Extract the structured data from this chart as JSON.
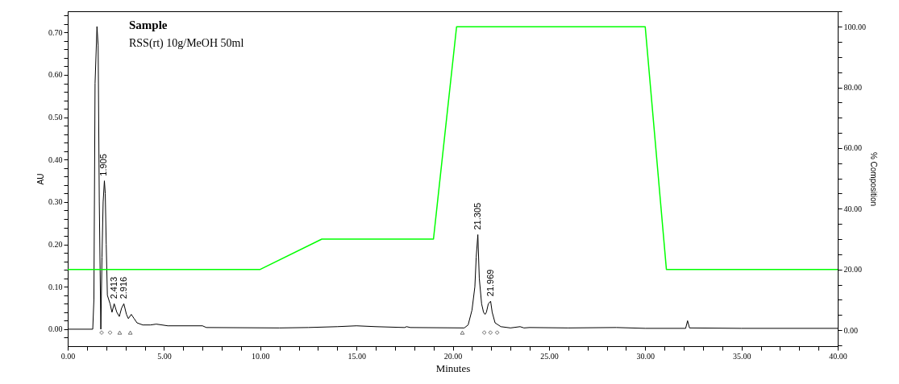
{
  "chart_data": {
    "type": "line",
    "title": "Sample",
    "subtitle": "RSS(rt) 10g/MeOH 50ml",
    "xlabel": "Minutes",
    "ylabel": "AU",
    "y2label": "% Composition",
    "xlim": [
      0,
      40
    ],
    "xticks": [
      {
        "value": 0,
        "label": "0.00"
      },
      {
        "value": 1,
        "label": null
      },
      {
        "value": 2,
        "label": null
      },
      {
        "value": 3,
        "label": null
      },
      {
        "value": 4,
        "label": null
      },
      {
        "value": 5,
        "label": "5.00"
      },
      {
        "value": 6,
        "label": null
      },
      {
        "value": 7,
        "label": null
      },
      {
        "value": 8,
        "label": null
      },
      {
        "value": 9,
        "label": null
      },
      {
        "value": 10,
        "label": "10.00"
      },
      {
        "value": 11,
        "label": null
      },
      {
        "value": 12,
        "label": null
      },
      {
        "value": 13,
        "label": null
      },
      {
        "value": 14,
        "label": null
      },
      {
        "value": 15,
        "label": "15.00"
      },
      {
        "value": 16,
        "label": null
      },
      {
        "value": 17,
        "label": null
      },
      {
        "value": 18,
        "label": null
      },
      {
        "value": 19,
        "label": null
      },
      {
        "value": 20,
        "label": "20.00"
      },
      {
        "value": 21,
        "label": null
      },
      {
        "value": 22,
        "label": null
      },
      {
        "value": 23,
        "label": null
      },
      {
        "value": 24,
        "label": null
      },
      {
        "value": 25,
        "label": "25.00"
      },
      {
        "value": 26,
        "label": null
      },
      {
        "value": 27,
        "label": null
      },
      {
        "value": 28,
        "label": null
      },
      {
        "value": 29,
        "label": null
      },
      {
        "value": 30,
        "label": "30.00"
      },
      {
        "value": 31,
        "label": null
      },
      {
        "value": 32,
        "label": null
      },
      {
        "value": 33,
        "label": null
      },
      {
        "value": 34,
        "label": null
      },
      {
        "value": 35,
        "label": "35.00"
      },
      {
        "value": 36,
        "label": null
      },
      {
        "value": 37,
        "label": null
      },
      {
        "value": 38,
        "label": null
      },
      {
        "value": 39,
        "label": null
      },
      {
        "value": 40,
        "label": "40.00"
      }
    ],
    "ylim": [
      -0.04,
      0.75
    ],
    "yticks": [
      {
        "value": -0.02,
        "label": null
      },
      {
        "value": 0,
        "label": "0.00"
      },
      {
        "value": 0.02,
        "label": null
      },
      {
        "value": 0.04,
        "label": null
      },
      {
        "value": 0.06,
        "label": null
      },
      {
        "value": 0.08,
        "label": null
      },
      {
        "value": 0.1,
        "label": "0.10"
      },
      {
        "value": 0.12,
        "label": null
      },
      {
        "value": 0.14,
        "label": null
      },
      {
        "value": 0.16,
        "label": null
      },
      {
        "value": 0.18,
        "label": null
      },
      {
        "value": 0.2,
        "label": "0.20"
      },
      {
        "value": 0.22,
        "label": null
      },
      {
        "value": 0.24,
        "label": null
      },
      {
        "value": 0.26,
        "label": null
      },
      {
        "value": 0.28,
        "label": null
      },
      {
        "value": 0.3,
        "label": "0.30"
      },
      {
        "value": 0.32,
        "label": null
      },
      {
        "value": 0.34,
        "label": null
      },
      {
        "value": 0.36,
        "label": null
      },
      {
        "value": 0.38,
        "label": null
      },
      {
        "value": 0.4,
        "label": "0.40"
      },
      {
        "value": 0.42,
        "label": null
      },
      {
        "value": 0.44,
        "label": null
      },
      {
        "value": 0.46,
        "label": null
      },
      {
        "value": 0.48,
        "label": null
      },
      {
        "value": 0.5,
        "label": "0.50"
      },
      {
        "value": 0.52,
        "label": null
      },
      {
        "value": 0.54,
        "label": null
      },
      {
        "value": 0.56,
        "label": null
      },
      {
        "value": 0.58,
        "label": null
      },
      {
        "value": 0.6,
        "label": "0.60"
      },
      {
        "value": 0.62,
        "label": null
      },
      {
        "value": 0.64,
        "label": null
      },
      {
        "value": 0.66,
        "label": null
      },
      {
        "value": 0.68,
        "label": null
      },
      {
        "value": 0.7,
        "label": "0.70"
      },
      {
        "value": 0.72,
        "label": null
      },
      {
        "value": 0.74,
        "label": null
      }
    ],
    "y2lim": [
      -5.3,
      105.1
    ],
    "y2ticks": [
      {
        "value": -5,
        "label": null
      },
      {
        "value": 0,
        "label": "0.00"
      },
      {
        "value": 5,
        "label": null
      },
      {
        "value": 10,
        "label": null
      },
      {
        "value": 15,
        "label": null
      },
      {
        "value": 20,
        "label": "20.00"
      },
      {
        "value": 25,
        "label": null
      },
      {
        "value": 30,
        "label": null
      },
      {
        "value": 35,
        "label": null
      },
      {
        "value": 40,
        "label": "40.00"
      },
      {
        "value": 45,
        "label": null
      },
      {
        "value": 50,
        "label": null
      },
      {
        "value": 55,
        "label": null
      },
      {
        "value": 60,
        "label": "60.00"
      },
      {
        "value": 65,
        "label": null
      },
      {
        "value": 70,
        "label": null
      },
      {
        "value": 75,
        "label": null
      },
      {
        "value": 80,
        "label": "80.00"
      },
      {
        "value": 85,
        "label": null
      },
      {
        "value": 90,
        "label": null
      },
      {
        "value": 95,
        "label": null
      },
      {
        "value": 100,
        "label": "100.00"
      },
      {
        "value": 105,
        "label": null
      }
    ],
    "grid": false,
    "series": [
      {
        "type": "line",
        "color": "#000000",
        "x": [
          0,
          1.3,
          1.36,
          1.42,
          1.52,
          1.58,
          1.64,
          1.72,
          1.78,
          1.84,
          1.905,
          1.95,
          2.0,
          2.06,
          2.2,
          2.3,
          2.413,
          2.55,
          2.68,
          2.8,
          2.916,
          3.05,
          3.15,
          3.3,
          3.45,
          3.6,
          3.9,
          4.3,
          4.6,
          4.9,
          5.2,
          7.0,
          7.2,
          11.0,
          12.5,
          14,
          15,
          16,
          17.5,
          17.6,
          17.8,
          20.6,
          20.8,
          21.0,
          21.15,
          21.22,
          21.305,
          21.38,
          21.5,
          21.6,
          21.68,
          21.75,
          21.85,
          21.969,
          22.05,
          22.2,
          22.5,
          23,
          23.5,
          23.7,
          24,
          26,
          28.5,
          30,
          32.1,
          32.2,
          32.3,
          35,
          40
        ],
        "values": [
          0,
          0,
          0.07,
          0.58,
          0.714,
          0.67,
          0.3,
          0.0,
          0.17,
          0.3,
          0.35,
          0.32,
          0.2,
          0.08,
          0.06,
          0.04,
          0.06,
          0.04,
          0.03,
          0.05,
          0.06,
          0.035,
          0.025,
          0.035,
          0.025,
          0.015,
          0.01,
          0.01,
          0.012,
          0.01,
          0.008,
          0.008,
          0.004,
          0.003,
          0.004,
          0.006,
          0.008,
          0.006,
          0.004,
          0.006,
          0.004,
          0.003,
          0.01,
          0.045,
          0.1,
          0.17,
          0.223,
          0.12,
          0.06,
          0.04,
          0.035,
          0.04,
          0.06,
          0.066,
          0.04,
          0.015,
          0.006,
          0.003,
          0.006,
          0.003,
          0.004,
          0.003,
          0.004,
          0.002,
          0.002,
          0.02,
          0.003,
          0.002,
          0.002
        ]
      },
      {
        "type": "line",
        "color": "#00ff00",
        "axis": "y2",
        "x": [
          0,
          10,
          13.2,
          19,
          20.2,
          30,
          31.1,
          40
        ],
        "values": [
          20,
          20,
          30,
          30,
          100,
          100,
          20,
          20
        ]
      },
      {
        "type": "scatter",
        "color": "#000000",
        "marker": "diamond",
        "x": [
          1.76,
          2.2,
          21.64,
          21.96,
          22.31
        ],
        "values": [
          -0.008,
          -0.008,
          -0.008,
          -0.008,
          -0.008
        ]
      },
      {
        "type": "scatter",
        "color": "#000000",
        "marker": "triangle",
        "x": [
          2.7,
          3.25,
          20.5
        ],
        "values": [
          -0.008,
          -0.008,
          -0.008
        ]
      }
    ],
    "annotations": [
      {
        "text": "1.905",
        "x": 1.905,
        "y": 0.35
      },
      {
        "text": "2.413",
        "x": 2.413,
        "y": 0.06
      },
      {
        "text": "2.916",
        "x": 2.916,
        "y": 0.06
      },
      {
        "text": "21.305",
        "x": 21.305,
        "y": 0.223
      },
      {
        "text": "21.969",
        "x": 21.969,
        "y": 0.066
      }
    ]
  }
}
